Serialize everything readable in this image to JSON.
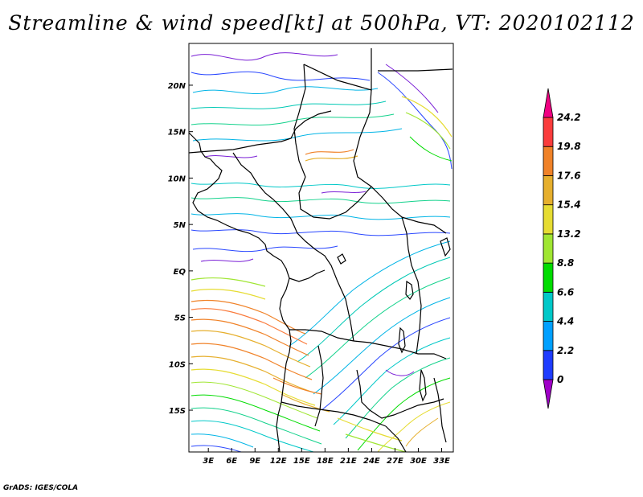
{
  "title": "Streamline & wind speed[kt] at 500hPa, VT: 2020102112",
  "footer": "GrADS: IGES/COLA",
  "map": {
    "lat_labels": [
      "20N",
      "15N",
      "10N",
      "5N",
      "EQ",
      "5S",
      "10S",
      "15S"
    ],
    "lon_labels": [
      "3E",
      "6E",
      "9E",
      "12E",
      "15E",
      "18E",
      "21E",
      "24E",
      "27E",
      "30E",
      "33E"
    ],
    "lat_values": [
      20,
      15,
      10,
      5,
      0,
      -5,
      -10,
      -15
    ],
    "lon_values": [
      3,
      6,
      9,
      12,
      15,
      18,
      21,
      24,
      27,
      30,
      33
    ],
    "lon_range": [
      0.5,
      34.5
    ],
    "lat_range": [
      -19.5,
      24.5
    ]
  },
  "colorbar": {
    "labels": [
      "24.2",
      "19.8",
      "17.6",
      "15.4",
      "13.2",
      "8.8",
      "6.6",
      "4.4",
      "2.2",
      "0"
    ],
    "colors": [
      "#a000c8",
      "#1e3cff",
      "#00a0ff",
      "#00c8c8",
      "#00dc00",
      "#a0e632",
      "#e6dc32",
      "#e6af2d",
      "#f08228",
      "#fa3c3c",
      "#f00082"
    ]
  }
}
